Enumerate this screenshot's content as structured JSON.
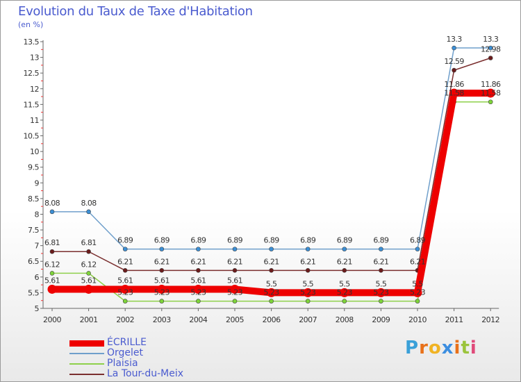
{
  "title": "Evolution du Taux de Taxe d'Habitation",
  "subtitle": "(en %)",
  "logo": {
    "letters": [
      "P",
      "r",
      "o",
      "x",
      "i",
      "t",
      "i"
    ],
    "colors": [
      "#3aa0d8",
      "#e8711a",
      "#f0b323",
      "#3c8ee0",
      "#e8711a",
      "#9bc43c",
      "#e04a7a"
    ]
  },
  "chart_data": {
    "type": "line",
    "title": "Evolution du Taux de Taxe d'Habitation",
    "ylabel": "(en %)",
    "xlabel": "",
    "categories": [
      "2000",
      "2001",
      "2002",
      "2003",
      "2004",
      "2005",
      "2006",
      "2007",
      "2008",
      "2009",
      "2010",
      "2011",
      "2012"
    ],
    "ylim": [
      5,
      13.5
    ],
    "yticks": [
      "5",
      "5.5",
      "6",
      "6.5",
      "7",
      "7.5",
      "8",
      "8.5",
      "9",
      "9.5",
      "10",
      "10.5",
      "11",
      "11.5",
      "12",
      "12.5",
      "13",
      "13.5"
    ],
    "grid": false,
    "legend_position": "bottom-left",
    "series": [
      {
        "name": "ÉCRILLE",
        "color": "#ee0000",
        "values": [
          5.61,
          5.61,
          5.61,
          5.61,
          5.61,
          5.61,
          5.5,
          5.5,
          5.5,
          5.5,
          5.5,
          11.86,
          11.86
        ],
        "labels": [
          "5.61",
          "5.61",
          "5.61",
          "5.61",
          "5.61",
          "5.61",
          "5.5",
          "5.5",
          "5.5",
          "5.5",
          "5.5",
          "11.86",
          "11.86"
        ]
      },
      {
        "name": "Orgelet",
        "color": "#6f9fcb",
        "values": [
          8.08,
          8.08,
          6.89,
          6.89,
          6.89,
          6.89,
          6.89,
          6.89,
          6.89,
          6.89,
          6.89,
          13.3,
          13.3
        ],
        "labels": [
          "8.08",
          "8.08",
          "6.89",
          "6.89",
          "6.89",
          "6.89",
          "6.89",
          "6.89",
          "6.89",
          "6.89",
          "6.89",
          "13.3",
          "13.3"
        ]
      },
      {
        "name": "Plaisia",
        "color": "#8ed04a",
        "values": [
          6.12,
          6.12,
          5.23,
          5.23,
          5.23,
          5.23,
          5.23,
          5.23,
          5.23,
          5.23,
          5.23,
          11.58,
          11.58
        ],
        "labels": [
          "6.12",
          "6.12",
          "5.23",
          "5.23",
          "5.23",
          "5.23",
          "5.23",
          "5.23",
          "5.23",
          "5.23",
          "5.23",
          "11.58",
          "11.58"
        ]
      },
      {
        "name": "La Tour-du-Meix",
        "color": "#7a2e2e",
        "values": [
          6.81,
          6.81,
          6.21,
          6.21,
          6.21,
          6.21,
          6.21,
          6.21,
          6.21,
          6.21,
          6.21,
          12.59,
          12.98
        ],
        "labels": [
          "6.81",
          "6.81",
          "6.21",
          "6.21",
          "6.21",
          "6.21",
          "6.21",
          "6.21",
          "6.21",
          "6.21",
          "6.21",
          "12.59",
          "12.98"
        ]
      }
    ]
  }
}
